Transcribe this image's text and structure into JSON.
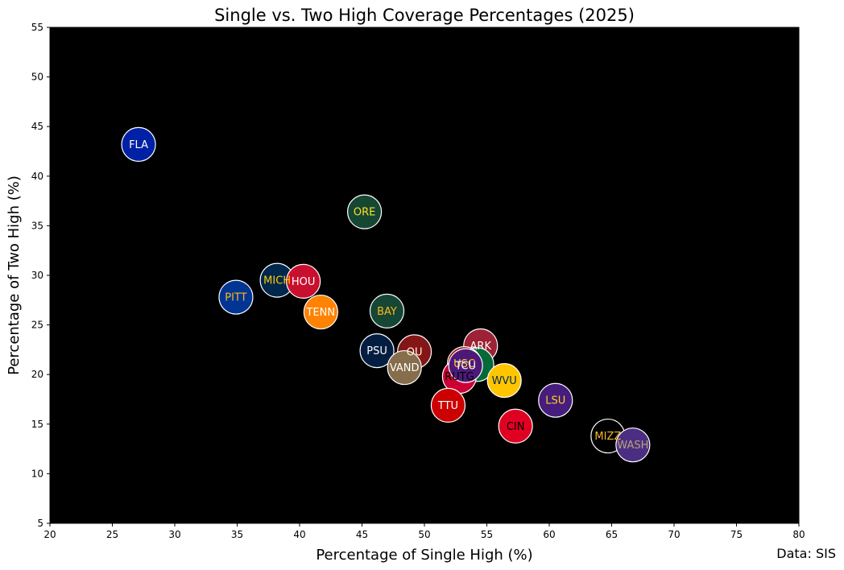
{
  "chart_data": {
    "type": "scatter",
    "title": "Single vs. Two High Coverage Percentages (2025)",
    "xlabel": "Percentage of Single High (%)",
    "ylabel": "Percentage of Two High (%)",
    "source_note": "Data: SIS",
    "xlim": [
      20,
      80
    ],
    "ylim": [
      5,
      55
    ],
    "xticks": [
      "20",
      "25",
      "30",
      "35",
      "40",
      "45",
      "50",
      "55",
      "60",
      "65",
      "70",
      "75",
      "80"
    ],
    "yticks": [
      "5",
      "10",
      "15",
      "20",
      "25",
      "30",
      "35",
      "40",
      "45",
      "50",
      "55"
    ],
    "grid": false,
    "plot_background": "#000000",
    "points": [
      {
        "label": "FLA",
        "x": 27.1,
        "y": 43.2,
        "fill": "#0021A5",
        "text_color": "#FFFFFF"
      },
      {
        "label": "ORE",
        "x": 45.2,
        "y": 36.4,
        "fill": "#154733",
        "text_color": "#FEE123"
      },
      {
        "label": "MICH",
        "x": 38.2,
        "y": 29.5,
        "fill": "#00274C",
        "text_color": "#FFCB05"
      },
      {
        "label": "HOU",
        "x": 40.3,
        "y": 29.4,
        "fill": "#C8102E",
        "text_color": "#FFFFFF"
      },
      {
        "label": "PITT",
        "x": 34.9,
        "y": 27.8,
        "fill": "#003594",
        "text_color": "#FFB81C"
      },
      {
        "label": "TENN",
        "x": 41.7,
        "y": 26.3,
        "fill": "#FF8200",
        "text_color": "#FFFFFF"
      },
      {
        "label": "BAY",
        "x": 47.0,
        "y": 26.4,
        "fill": "#154734",
        "text_color": "#FFB81C"
      },
      {
        "label": "PSU",
        "x": 46.2,
        "y": 22.4,
        "fill": "#041E42",
        "text_color": "#FFFFFF"
      },
      {
        "label": "OU",
        "x": 49.2,
        "y": 22.3,
        "fill": "#841617",
        "text_color": "#FDF9D8"
      },
      {
        "label": "VAND",
        "x": 48.4,
        "y": 20.7,
        "fill": "#866D4B",
        "text_color": "#FFFFFF"
      },
      {
        "label": "ARK",
        "x": 54.5,
        "y": 22.9,
        "fill": "#9D2235",
        "text_color": "#FFFFFF"
      },
      {
        "label": "",
        "x": 54.2,
        "y": 21.0,
        "fill": "#046A38",
        "text_color": "#FFFFFF"
      },
      {
        "label": "USC",
        "x": 53.2,
        "y": 21.1,
        "fill": "#990000",
        "text_color": "#FFC72C"
      },
      {
        "label": "RUTG",
        "x": 52.8,
        "y": 19.8,
        "fill": "#CC0033",
        "text_color": "#000000"
      },
      {
        "label": "TCU",
        "x": 53.3,
        "y": 20.9,
        "fill": "#4D1979",
        "text_color": "#FFFFFF"
      },
      {
        "label": "WVU",
        "x": 56.4,
        "y": 19.4,
        "fill": "#FFC600",
        "text_color": "#002855"
      },
      {
        "label": "TTU",
        "x": 51.9,
        "y": 16.9,
        "fill": "#CC0000",
        "text_color": "#FFFFFF"
      },
      {
        "label": "CIN",
        "x": 57.3,
        "y": 14.8,
        "fill": "#E00122",
        "text_color": "#000000"
      },
      {
        "label": "LSU",
        "x": 60.5,
        "y": 17.4,
        "fill": "#461D7C",
        "text_color": "#FDD023"
      },
      {
        "label": "MIZZ",
        "x": 64.7,
        "y": 13.8,
        "fill": "#000000",
        "text_color": "#F1B82D"
      },
      {
        "label": "WASH",
        "x": 66.7,
        "y": 12.9,
        "fill": "#4B2E83",
        "text_color": "#B7A57A"
      }
    ]
  }
}
